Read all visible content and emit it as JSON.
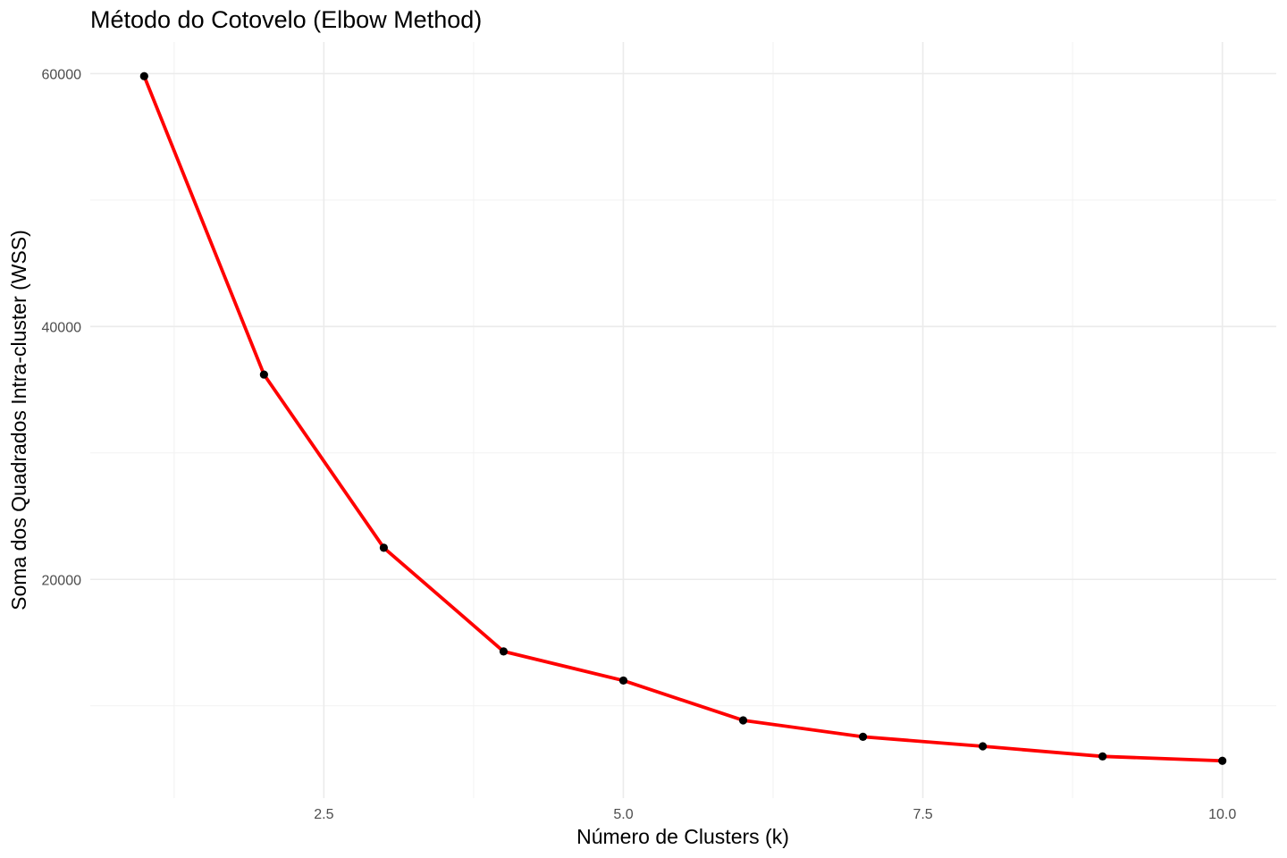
{
  "chart_data": {
    "type": "line",
    "title": "Método do Cotovelo (Elbow Method)",
    "xlabel": "Número de Clusters (k)",
    "ylabel": "Soma dos Quadrados Intra-cluster (WSS)",
    "x": [
      1,
      2,
      3,
      4,
      5,
      6,
      7,
      8,
      9,
      10
    ],
    "series": [
      {
        "values": [
          59800,
          36200,
          22500,
          14300,
          12000,
          8850,
          7550,
          6800,
          6000,
          5650
        ],
        "line_color": "#ff0000",
        "point_color": "#000000"
      }
    ],
    "xlim": [
      0.55,
      10.45
    ],
    "ylim": [
      2700,
      62500
    ],
    "x_ticks": [
      2.5,
      5.0,
      7.5,
      10.0
    ],
    "x_tick_labels": [
      "2.5",
      "5.0",
      "7.5",
      "10.0"
    ],
    "x_minor_ticks": [
      1.25,
      3.75,
      6.25,
      8.75
    ],
    "y_ticks": [
      20000,
      40000,
      60000
    ],
    "y_tick_labels": [
      "20000",
      "40000",
      "60000"
    ],
    "y_minor_ticks": [
      10000,
      30000,
      50000
    ],
    "grid": true,
    "legend": "none"
  }
}
